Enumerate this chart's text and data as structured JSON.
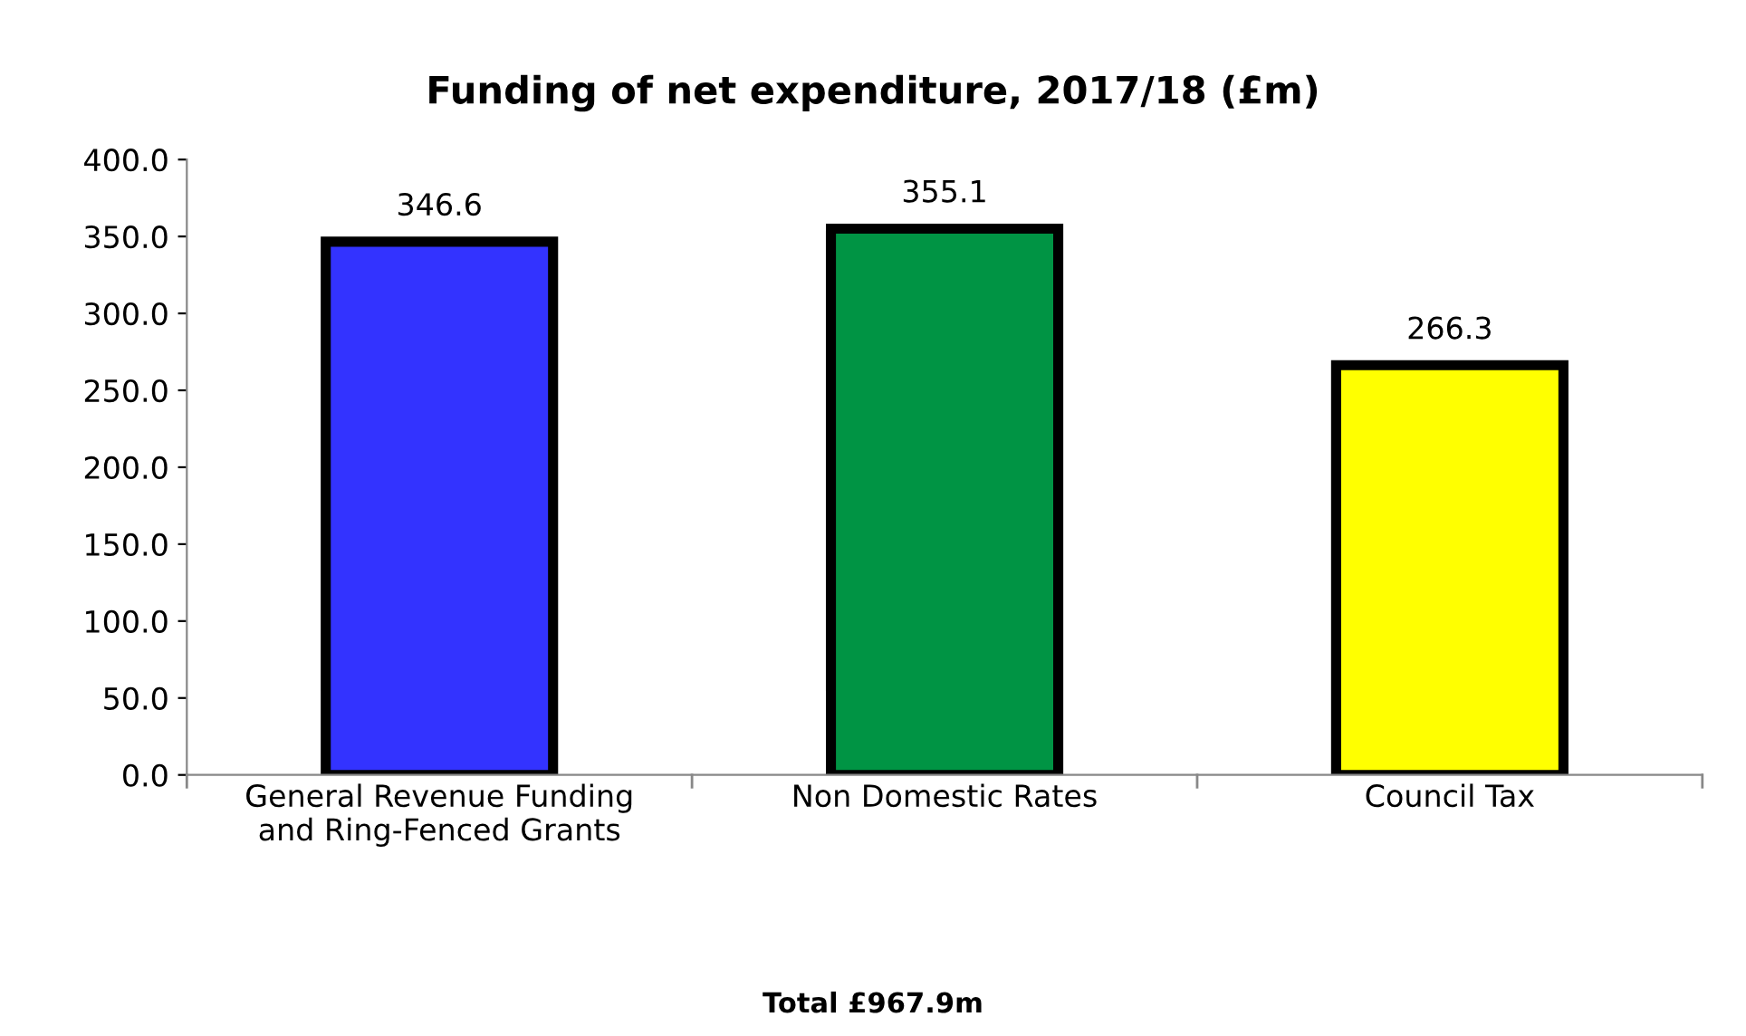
{
  "chart_data": {
    "type": "bar",
    "title": "Funding of net expenditure, 2017/18 (£m)",
    "categories": [
      "General Revenue Funding\nand Ring-Fenced Grants",
      "Non Domestic Rates",
      "Council Tax"
    ],
    "values": [
      346.6,
      355.1,
      266.3
    ],
    "colors": [
      "#3333ff",
      "#009444",
      "#ffff00"
    ],
    "ylim": [
      0,
      400
    ],
    "yticks": [
      {
        "value": 0,
        "label": "0.0"
      },
      {
        "value": 50,
        "label": "50.0"
      },
      {
        "value": 100,
        "label": "100.0"
      },
      {
        "value": 150,
        "label": "150.0"
      },
      {
        "value": 200,
        "label": "200.0"
      },
      {
        "value": 250,
        "label": "250.0"
      },
      {
        "value": 300,
        "label": "300.0"
      },
      {
        "value": 350,
        "label": "350.0"
      },
      {
        "value": 400,
        "label": "400.0"
      }
    ],
    "data_labels": true,
    "grid": false,
    "legend": false,
    "annotations": [
      "Total £967.9m"
    ]
  }
}
